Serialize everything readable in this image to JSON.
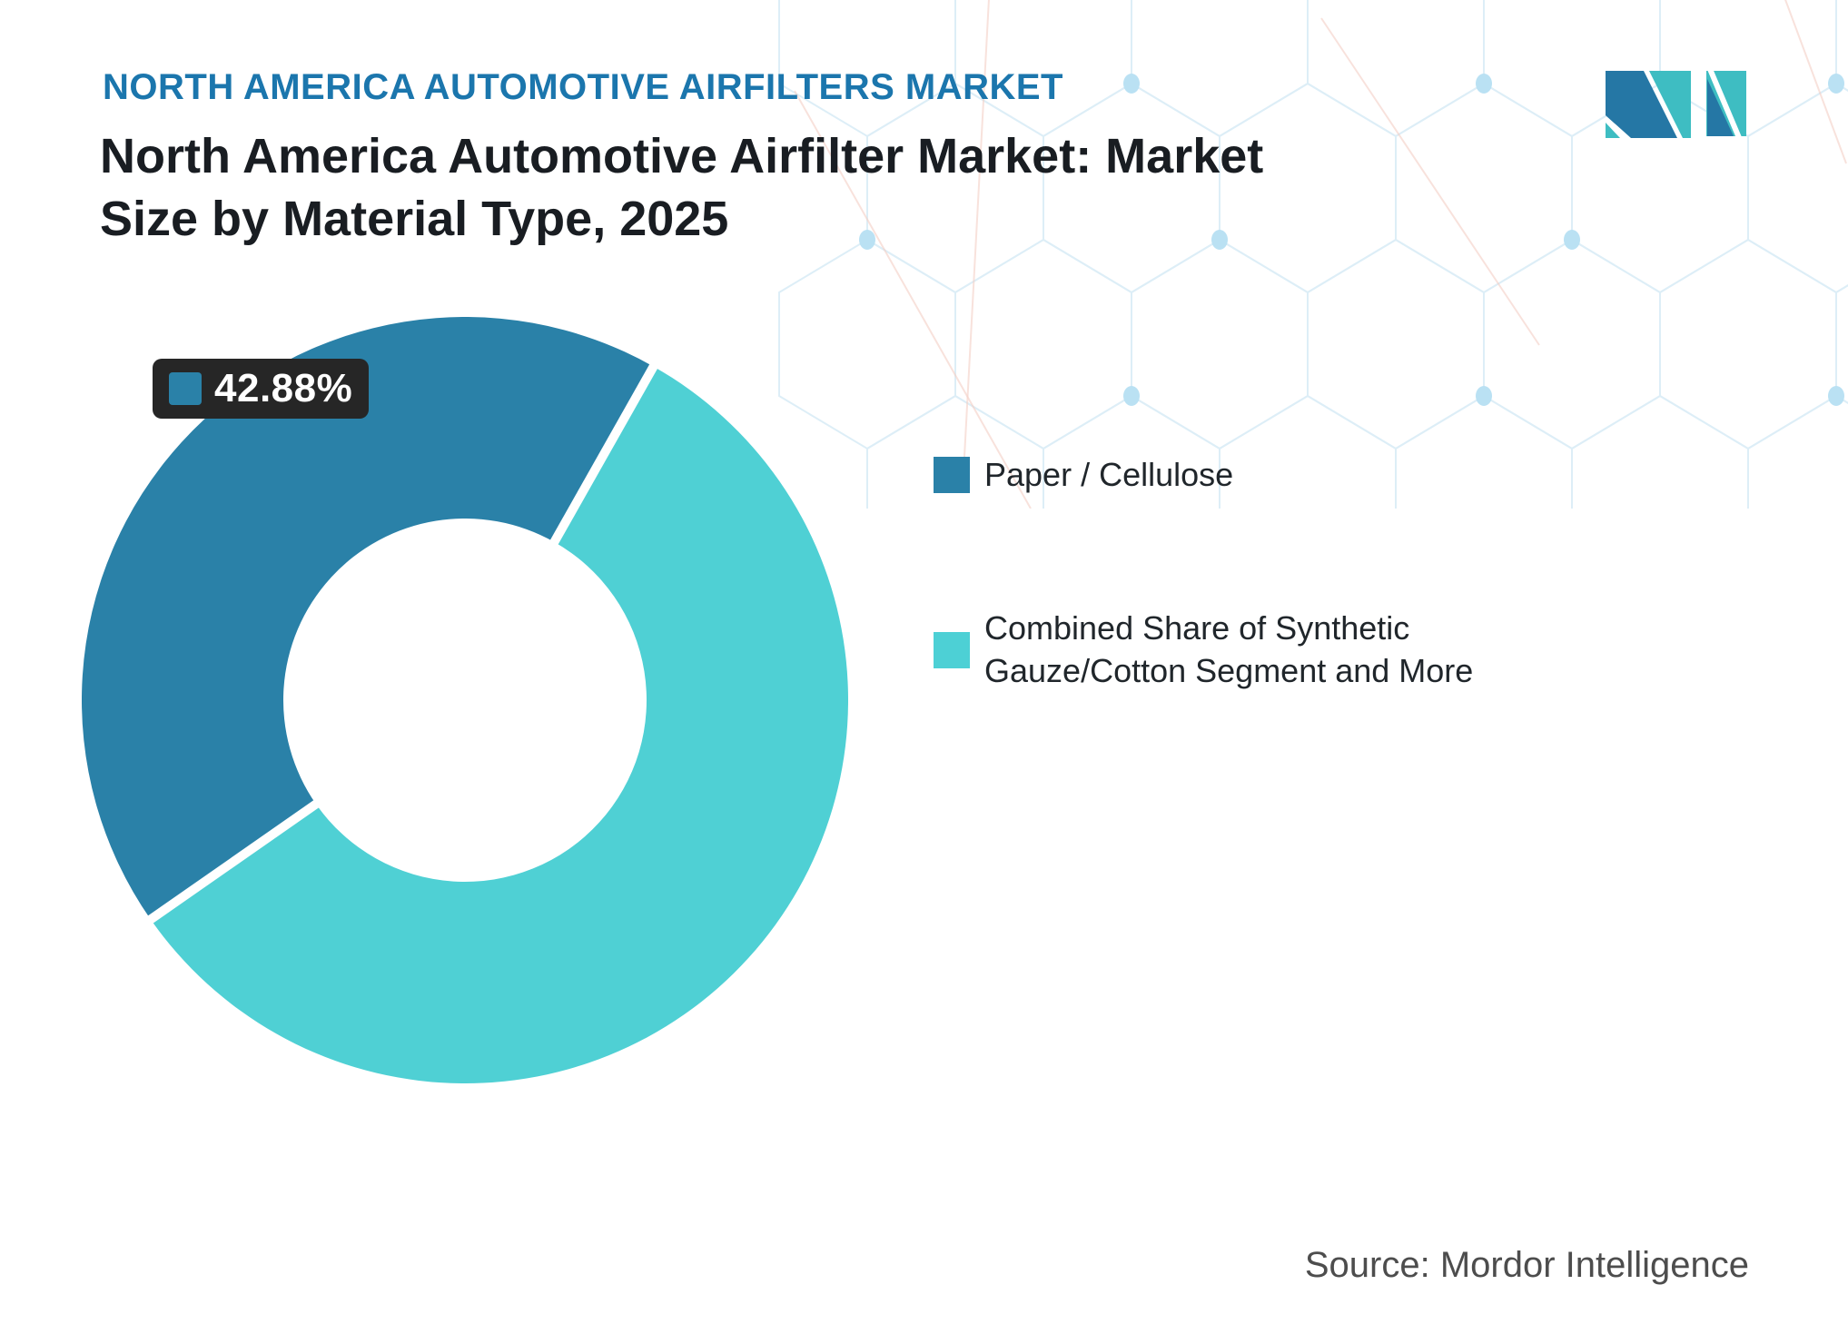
{
  "header": {
    "eyebrow": "NORTH AMERICA AUTOMOTIVE AIRFILTERS MARKET",
    "title_line1": "North America Automotive Airfilter Market: Market",
    "title_line2": "Size by Material Type, 2025"
  },
  "chart_data": {
    "type": "pie",
    "title": "North America Automotive Airfilter Market: Market Size by Material Type, 2025",
    "donut": true,
    "units": "%",
    "start_angle_deg": 235.1,
    "inner_radius_ratio": 0.475,
    "legend_position": "right",
    "series": [
      {
        "name": "Paper / Cellulose",
        "value": 42.88,
        "color": "#2a81a8",
        "data_label": "42.88%"
      },
      {
        "name": "Combined Share of Synthetic Gauze/Cotton Segment and More",
        "value": 57.12,
        "color": "#4fd0d4",
        "data_label": ""
      }
    ]
  },
  "data_label": {
    "value": "42.88%",
    "swatch_color": "#2a81a8",
    "background": "#262626"
  },
  "legend": {
    "items": [
      {
        "lines": [
          "Paper / Cellulose"
        ],
        "color": "#2a81a8"
      },
      {
        "lines": [
          "Combined Share of Synthetic",
          "Gauze/Cotton Segment and More"
        ],
        "color": "#4dd0d5"
      }
    ]
  },
  "footer": {
    "source": "Source: Mordor Intelligence"
  },
  "brand": {
    "logo_name": "mordor-intelligence-logo",
    "logo_dark": "#2577a5",
    "logo_teal": "#3ebdc2"
  },
  "decor": {
    "mesh_line_color": "#d8ecf6",
    "mesh_dot_color": "#aedcf2",
    "mesh_accent_color": "#f2c6bb"
  }
}
